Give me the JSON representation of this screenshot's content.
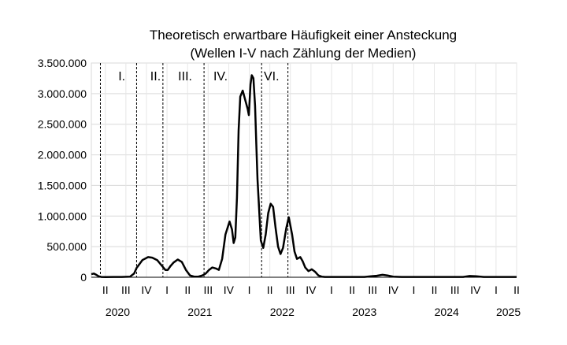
{
  "chart_data": {
    "type": "line",
    "title": "Theoretisch erwartbare Häufigkeit einer Ansteckung",
    "subtitle": "(Wellen I-V nach Zählung der Medien)",
    "xlabel": "",
    "ylabel": "",
    "ylim": [
      0,
      3500000
    ],
    "y_ticks": [
      {
        "value": 0,
        "label": "0"
      },
      {
        "value": 500000,
        "label": "500.000"
      },
      {
        "value": 1000000,
        "label": "1.000.000"
      },
      {
        "value": 1500000,
        "label": "1.500.000"
      },
      {
        "value": 2000000,
        "label": "2.000.000"
      },
      {
        "value": 2500000,
        "label": "2.500.000"
      },
      {
        "value": 3000000,
        "label": "3.000.000"
      },
      {
        "value": 3500000,
        "label": "3.500.000"
      }
    ],
    "xlim": [
      2020.08,
      2025.25
    ],
    "quarter_ticks": [
      {
        "x": 2020.25,
        "label": "II"
      },
      {
        "x": 2020.5,
        "label": "III"
      },
      {
        "x": 2020.75,
        "label": "IV"
      },
      {
        "x": 2021.0,
        "label": "I"
      },
      {
        "x": 2021.25,
        "label": "II"
      },
      {
        "x": 2021.5,
        "label": "III"
      },
      {
        "x": 2021.75,
        "label": "IV"
      },
      {
        "x": 2022.0,
        "label": "I"
      },
      {
        "x": 2022.25,
        "label": "II"
      },
      {
        "x": 2022.5,
        "label": "III"
      },
      {
        "x": 2022.75,
        "label": "IV"
      },
      {
        "x": 2023.0,
        "label": "I"
      },
      {
        "x": 2023.25,
        "label": "II"
      },
      {
        "x": 2023.5,
        "label": "III"
      },
      {
        "x": 2023.75,
        "label": "IV"
      },
      {
        "x": 2024.0,
        "label": "I"
      },
      {
        "x": 2024.25,
        "label": "II"
      },
      {
        "x": 2024.5,
        "label": "III"
      },
      {
        "x": 2024.75,
        "label": "IV"
      },
      {
        "x": 2025.0,
        "label": "I"
      },
      {
        "x": 2025.25,
        "label": "II"
      }
    ],
    "year_labels": [
      {
        "x": 2020.4,
        "label": "2020"
      },
      {
        "x": 2021.4,
        "label": "2021"
      },
      {
        "x": 2022.4,
        "label": "2022"
      },
      {
        "x": 2023.4,
        "label": "2023"
      },
      {
        "x": 2024.4,
        "label": "2024"
      },
      {
        "x": 2025.15,
        "label": "2025"
      }
    ],
    "wave_boundaries": [
      2020.19,
      2020.63,
      2020.95,
      2021.45,
      2022.15,
      2022.47
    ],
    "wave_labels": [
      {
        "x": 2020.45,
        "label": "I."
      },
      {
        "x": 2020.86,
        "label": "II."
      },
      {
        "x": 2021.22,
        "label": "III."
      },
      {
        "x": 2021.65,
        "label": "IV."
      },
      {
        "x": 2022.27,
        "label": "VI."
      }
    ],
    "grid": true,
    "legend": "none",
    "line_color": "#000000",
    "series": [
      {
        "x": [
          2020.08,
          2020.11,
          2020.14,
          2020.17,
          2020.2,
          2020.25,
          2020.35,
          2020.45,
          2020.55,
          2020.6,
          2020.63,
          2020.7,
          2020.77,
          2020.82,
          2020.88,
          2020.93,
          2020.98,
          2021.01,
          2021.04,
          2021.08,
          2021.13,
          2021.18,
          2021.23,
          2021.28,
          2021.33,
          2021.38,
          2021.43,
          2021.47,
          2021.51,
          2021.55,
          2021.6,
          2021.63,
          2021.67,
          2021.71,
          2021.76,
          2021.79,
          2021.81,
          2021.83,
          2021.85,
          2021.87,
          2021.89,
          2021.92,
          2021.95,
          2021.98,
          2021.995,
          2022.015,
          2022.03,
          2022.05,
          2022.07,
          2022.085,
          2022.1,
          2022.12,
          2022.14,
          2022.17,
          2022.2,
          2022.23,
          2022.26,
          2022.29,
          2022.32,
          2022.35,
          2022.38,
          2022.41,
          2022.45,
          2022.48,
          2022.52,
          2022.55,
          2022.58,
          2022.62,
          2022.65,
          2022.68,
          2022.72,
          2022.76,
          2022.8,
          2022.84,
          2022.88,
          2022.92,
          2022.97,
          2023.02,
          2023.1,
          2023.2,
          2023.3,
          2023.4,
          2023.48,
          2023.55,
          2023.62,
          2023.68,
          2023.75,
          2023.85,
          2024.0,
          2024.2,
          2024.4,
          2024.6,
          2024.68,
          2024.76,
          2024.85,
          2025.0,
          2025.25
        ],
        "y": [
          50000,
          60000,
          40000,
          15000,
          5000,
          2000,
          5000,
          5000,
          10000,
          60000,
          150000,
          280000,
          330000,
          320000,
          280000,
          200000,
          120000,
          120000,
          180000,
          240000,
          290000,
          250000,
          120000,
          30000,
          10000,
          10000,
          30000,
          60000,
          120000,
          160000,
          140000,
          120000,
          300000,
          700000,
          910000,
          780000,
          560000,
          650000,
          1300000,
          2400000,
          2950000,
          3050000,
          2900000,
          2750000,
          2650000,
          3150000,
          3300000,
          3250000,
          2800000,
          2200000,
          1600000,
          1100000,
          600000,
          480000,
          700000,
          1050000,
          1200000,
          1150000,
          800000,
          500000,
          380000,
          480000,
          800000,
          980000,
          700000,
          420000,
          300000,
          330000,
          260000,
          160000,
          100000,
          130000,
          90000,
          30000,
          10000,
          5000,
          5000,
          5000,
          5000,
          5000,
          5000,
          5000,
          15000,
          25000,
          40000,
          30000,
          10000,
          5000,
          5000,
          5000,
          5000,
          5000,
          20000,
          15000,
          5000,
          5000,
          5000
        ]
      }
    ]
  }
}
